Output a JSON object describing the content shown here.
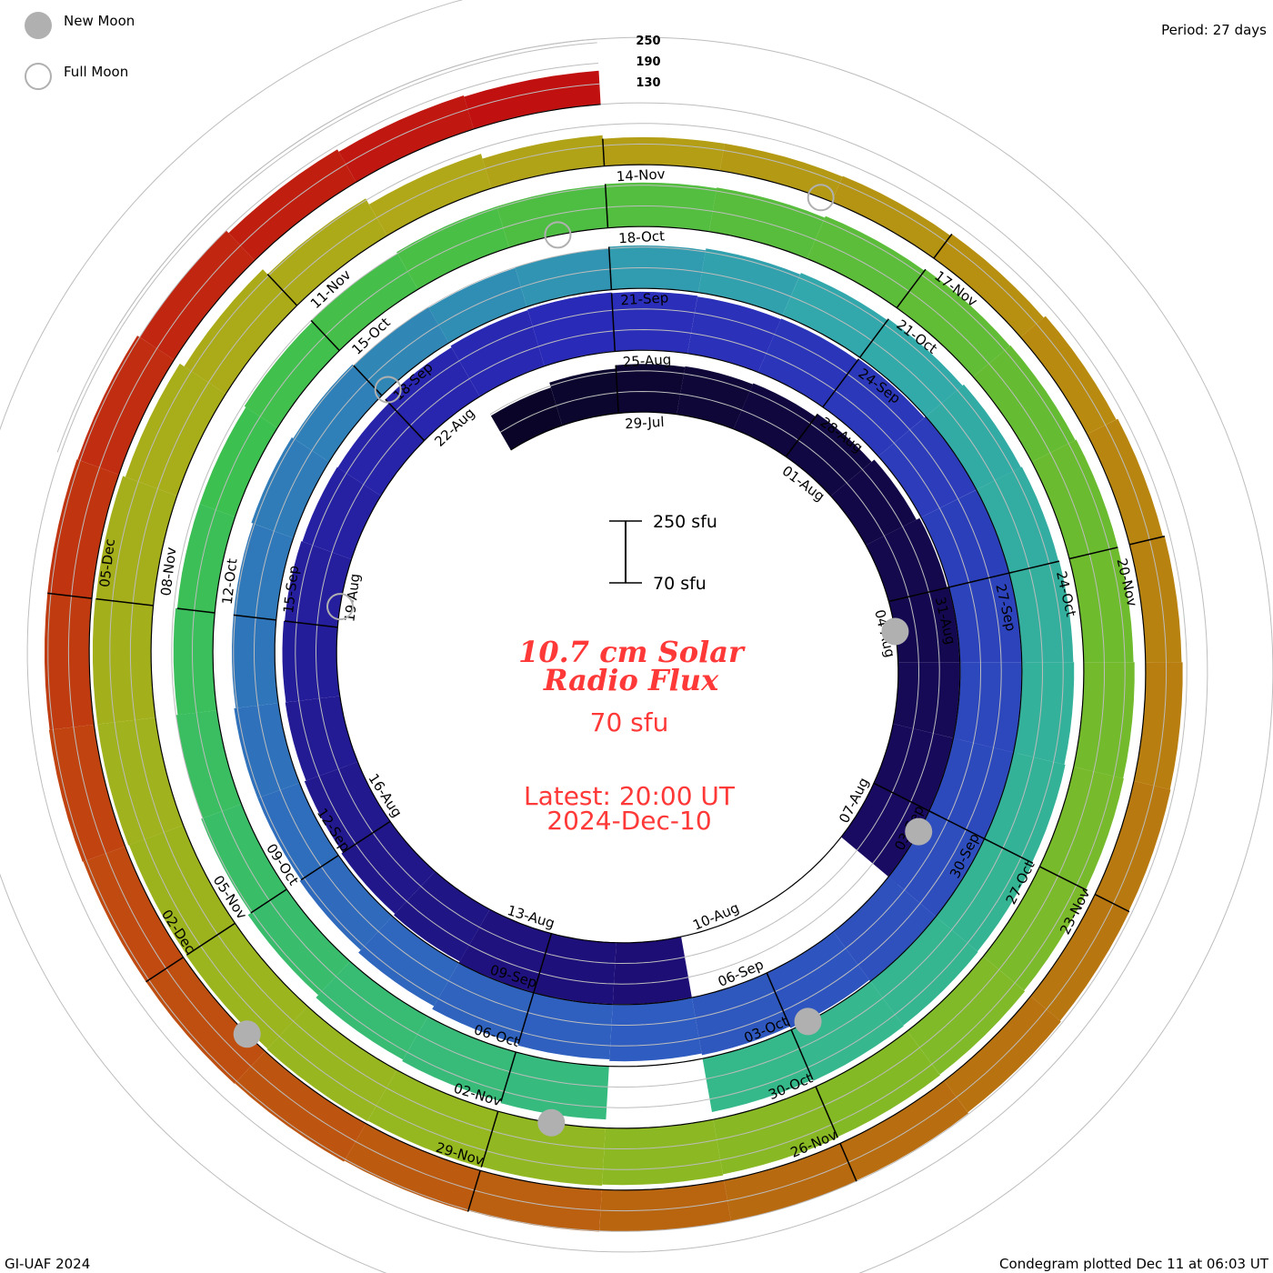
{
  "legend": {
    "new_moon": "New Moon",
    "full_moon": "Full Moon"
  },
  "period": "Period: 27 days",
  "footer_left": "GI-UAF 2024",
  "footer_right": "Condegram plotted Dec 11 at 06:03 UT",
  "level_labels": [
    "250",
    "190",
    "130"
  ],
  "scale_bar": {
    "top": "250 sfu",
    "bottom": "70 sfu"
  },
  "center": {
    "title1": "10.7 cm Solar",
    "title2": "Radio Flux",
    "baseline": "70 sfu",
    "latest": "Latest: 20:00 UT",
    "date": "2024-Dec-10"
  },
  "colors": {
    "title": "#ff3838",
    "new_moon": "#b0b0b0",
    "grid": "#bdbdbd"
  },
  "chart_data": {
    "type": "bar",
    "subtype": "spiral condegram",
    "title": "10.7 cm Solar Radio Flux",
    "units": "sfu",
    "period_days": 27,
    "baseline": 70,
    "levels": [
      130,
      190,
      250
    ],
    "start_date": "2024-07-27",
    "end_date": "2024-12-10",
    "values": [
      185,
      200,
      210,
      212,
      215,
      225,
      235,
      245,
      250,
      258,
      270,
      285,
      null,
      null,
      null,
      250,
      255,
      250,
      245,
      240,
      235,
      230,
      228,
      225,
      222,
      220,
      235,
      240,
      242,
      240,
      238,
      240,
      245,
      250,
      255,
      260,
      262,
      260,
      255,
      250,
      245,
      240,
      235,
      230,
      225,
      215,
      205,
      200,
      200,
      195,
      195,
      200,
      195,
      190,
      188,
      190,
      195,
      200,
      205,
      210,
      215,
      218,
      220,
      222,
      225,
      228,
      230,
      232,
      228,
      null,
      225,
      220,
      215,
      205,
      195,
      190,
      185,
      180,
      180,
      185,
      190,
      195,
      195,
      198,
      200,
      205,
      210,
      212,
      215,
      215,
      218,
      220,
      225,
      228,
      230,
      232,
      235,
      238,
      240,
      242,
      240,
      238,
      240,
      240,
      238,
      230,
      215,
      195,
      175,
      160,
      150,
      150,
      152,
      158,
      165,
      170,
      175,
      178,
      180,
      182,
      185,
      188,
      190,
      190,
      192,
      195,
      198,
      200,
      200,
      202,
      200,
      200,
      198,
      190,
      180,
      172,
      168
    ],
    "date_labels": [
      "29-Jul",
      "01-Aug",
      "04-Aug",
      "07-Aug",
      "10-Aug",
      "13-Aug",
      "16-Aug",
      "19-Aug",
      "22-Aug",
      "25-Aug",
      "28-Aug",
      "31-Aug",
      "03-Sep",
      "06-Sep",
      "09-Sep",
      "12-Sep",
      "15-Sep",
      "18-Sep",
      "21-Sep",
      "24-Sep",
      "27-Sep",
      "30-Sep",
      "03-Oct",
      "06-Oct",
      "09-Oct",
      "12-Oct",
      "15-Oct",
      "18-Oct",
      "21-Oct",
      "24-Oct",
      "27-Oct",
      "30-Oct",
      "02-Nov",
      "05-Nov",
      "08-Nov",
      "11-Nov",
      "14-Nov",
      "17-Nov",
      "20-Nov",
      "23-Nov",
      "26-Nov",
      "29-Nov",
      "02-Dec",
      "05-Dec"
    ],
    "first_label_day_index": 2,
    "label_step_days": 3,
    "new_moons_day_index": [
      8.5,
      38.3,
      67.8,
      97.5,
      127.2
    ],
    "full_moons_day_index": [
      23.3,
      53.1,
      82.5,
      111.9
    ],
    "colormap": [
      {
        "day": 0,
        "color": "#0a0528"
      },
      {
        "day": 14,
        "color": "#1c0c70"
      },
      {
        "day": 28,
        "color": "#2a2ab8"
      },
      {
        "day": 42,
        "color": "#2f5cc0"
      },
      {
        "day": 52,
        "color": "#2f80b8"
      },
      {
        "day": 58,
        "color": "#32a8ac"
      },
      {
        "day": 68,
        "color": "#36b98a"
      },
      {
        "day": 78,
        "color": "#3cc050"
      },
      {
        "day": 88,
        "color": "#6abb30"
      },
      {
        "day": 98,
        "color": "#95b820"
      },
      {
        "day": 108,
        "color": "#b0a818"
      },
      {
        "day": 114,
        "color": "#b88a10"
      },
      {
        "day": 122,
        "color": "#b86a10"
      },
      {
        "day": 128,
        "color": "#c04a10"
      },
      {
        "day": 136,
        "color": "#c01010"
      }
    ]
  }
}
